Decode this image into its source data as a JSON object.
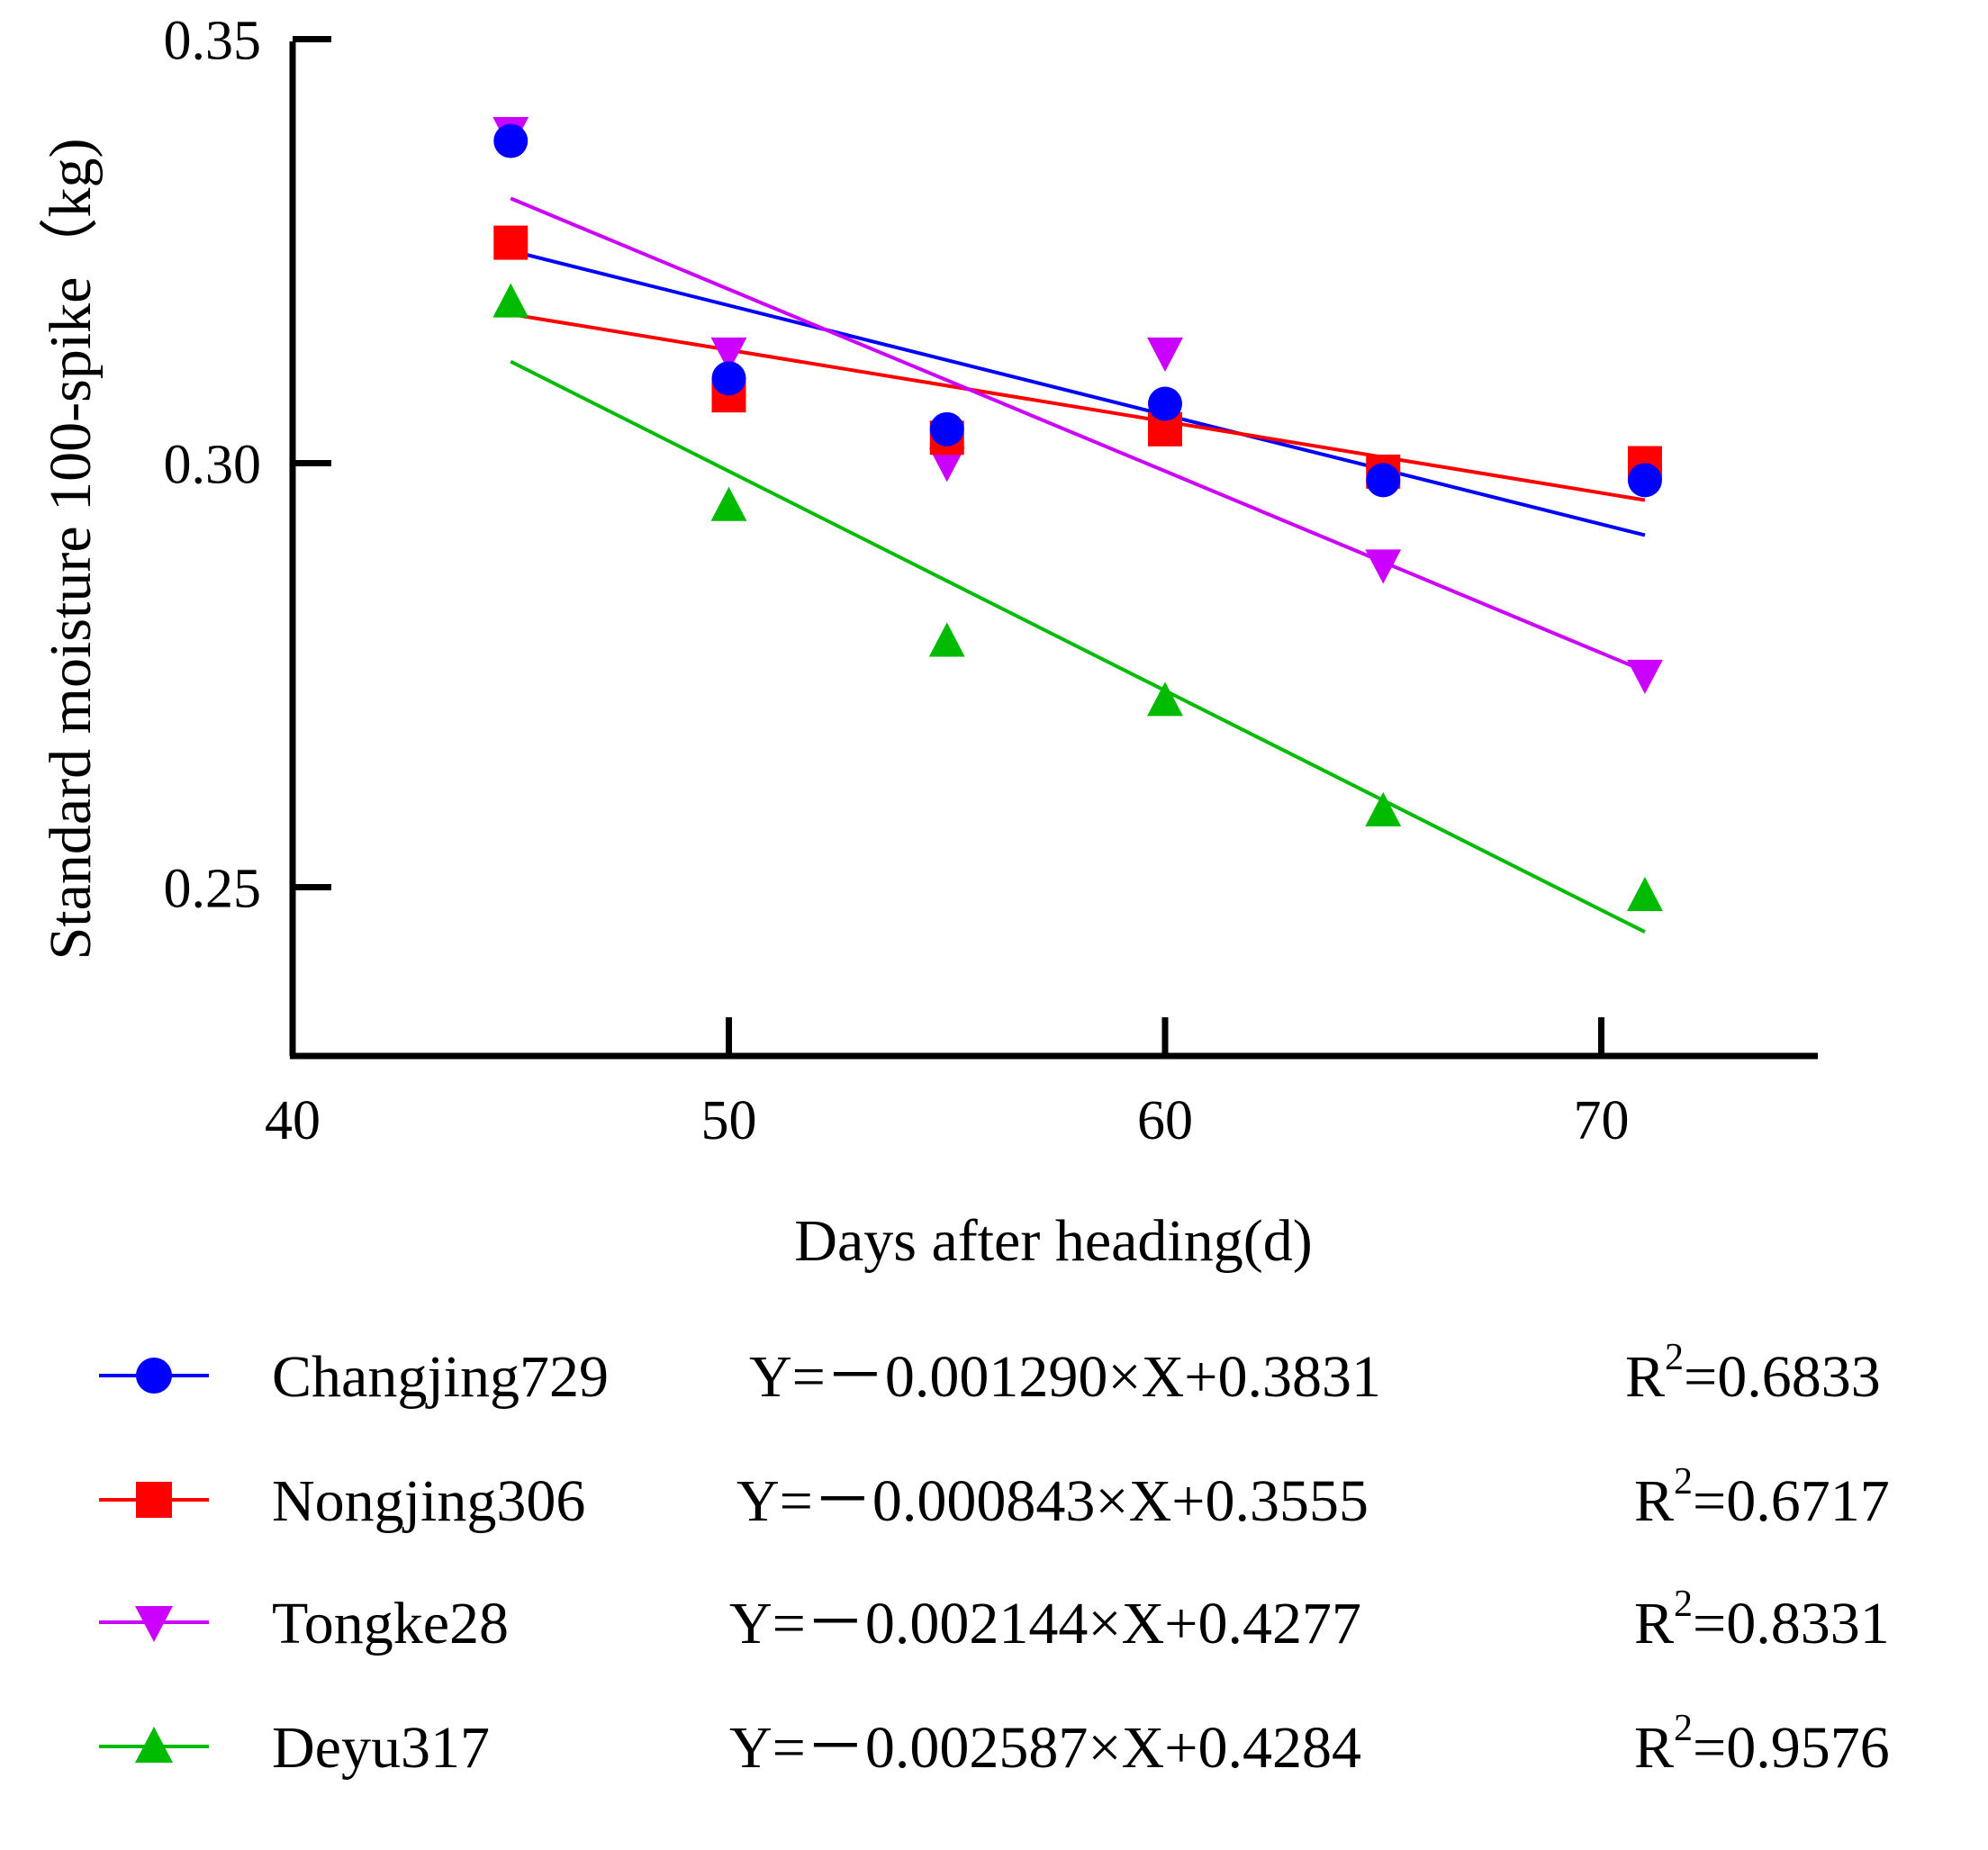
{
  "chart_data": {
    "type": "scatter",
    "title": "",
    "xlabel": "Days after heading(d)",
    "ylabel": "Standard moisture 100-spike（kg)",
    "xlim": [
      40,
      75
    ],
    "ylim": [
      0.23,
      0.35
    ],
    "x_ticks": [
      {
        "value": 40,
        "label": "40"
      },
      {
        "value": 50,
        "label": "50"
      },
      {
        "value": 60,
        "label": "60"
      },
      {
        "value": 70,
        "label": "70"
      }
    ],
    "y_ticks": [
      {
        "value": 0.25,
        "label": "0.25"
      },
      {
        "value": 0.3,
        "label": "0.30"
      },
      {
        "value": 0.35,
        "label": "0.35"
      }
    ],
    "x": [
      45,
      50,
      55,
      60,
      65,
      71
    ],
    "series": [
      {
        "name": "Changjing729",
        "color": "#0000ff",
        "marker": "circle",
        "values": [
          0.338,
          0.31,
          0.304,
          0.307,
          0.298,
          0.298
        ],
        "fit": {
          "slope": -0.00129,
          "intercept": 0.3831
        },
        "equation": "Y=－0.001290×X+0.3831",
        "r2_prefix": "R",
        "r2_sup": "2",
        "r2_value": "=0.6833"
      },
      {
        "name": "Nongjing306",
        "color": "#ff0000",
        "marker": "square",
        "values": [
          0.326,
          0.308,
          0.303,
          0.304,
          0.299,
          0.3
        ],
        "fit": {
          "slope": -0.000843,
          "intercept": 0.3555
        },
        "equation": "Y=－0.000843×X+0.3555",
        "r2_prefix": "R",
        "r2_sup": "2",
        "r2_value": "=0.6717"
      },
      {
        "name": "Tongke28",
        "color": "#cc00ff",
        "marker": "triangle-down",
        "values": [
          0.339,
          0.313,
          0.3,
          0.313,
          0.288,
          0.275
        ],
        "fit": {
          "slope": -0.002144,
          "intercept": 0.4277
        },
        "equation": "Y=－0.002144×X+0.4277",
        "r2_prefix": "R",
        "r2_sup": "2",
        "r2_value": "=0.8331"
      },
      {
        "name": "Deyu317",
        "color": "#00bb00",
        "marker": "triangle-up",
        "values": [
          0.319,
          0.295,
          0.279,
          0.272,
          0.259,
          0.249
        ],
        "fit": {
          "slope": -0.002587,
          "intercept": 0.4284
        },
        "equation": "Y=－0.002587×X+0.4284",
        "r2_prefix": "R",
        "r2_sup": "2",
        "r2_value": "=0.9576"
      }
    ],
    "fit_range": [
      45,
      71
    ],
    "legend_position": "bottom"
  }
}
